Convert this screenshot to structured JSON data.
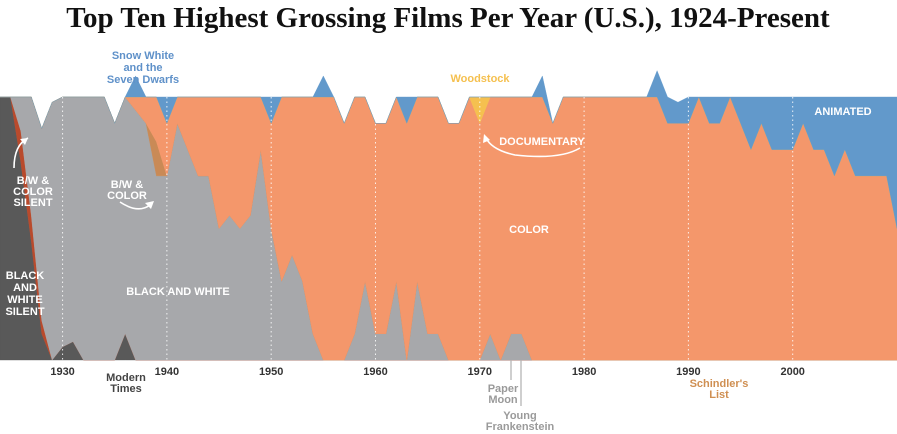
{
  "title": "Top Ten Highest Grossing Films Per Year (U.S.), 1924-Present",
  "chart_data": {
    "type": "area",
    "stacked": true,
    "normalized_to": 10,
    "x_ticks": [
      1930,
      1940,
      1950,
      1960,
      1970,
      1980,
      1990,
      2000
    ],
    "xlim": [
      1924,
      2010
    ],
    "ylim": [
      0,
      10
    ],
    "grid": "vertical dotted lines at each decade",
    "legend": "inline labels",
    "series": [
      {
        "key": "bw_silent",
        "name": "BLACK AND WHITE SILENT",
        "color": "#595959",
        "values": [
          [
            1924,
            10
          ],
          [
            1925,
            10
          ],
          [
            1926,
            7.5
          ],
          [
            1927,
            4.5
          ],
          [
            1928,
            1
          ],
          [
            1929,
            0
          ],
          [
            1930,
            0.5
          ],
          [
            1931,
            0.7
          ],
          [
            1932,
            0
          ],
          [
            1933,
            0
          ],
          [
            1934,
            0
          ],
          [
            1935,
            0
          ],
          [
            1936,
            1
          ],
          [
            1937,
            0
          ],
          [
            1938,
            0
          ],
          [
            1940,
            0
          ],
          [
            2010,
            0
          ]
        ]
      },
      {
        "key": "bw_color_silent",
        "name": "B/W & COLOR SILENT",
        "color": "#b94a2c",
        "values": [
          [
            1924,
            0
          ],
          [
            1925,
            0
          ],
          [
            1926,
            1.2
          ],
          [
            1927,
            1.0
          ],
          [
            1928,
            0.5
          ],
          [
            1929,
            0
          ],
          [
            2010,
            0
          ]
        ]
      },
      {
        "key": "bw",
        "name": "BLACK AND WHITE",
        "color": "#a7a8ab",
        "values": [
          [
            1924,
            0
          ],
          [
            1925,
            0
          ],
          [
            1926,
            1.3
          ],
          [
            1927,
            4.5
          ],
          [
            1928,
            7.3
          ],
          [
            1929,
            9.8
          ],
          [
            1930,
            9.5
          ],
          [
            1931,
            9.3
          ],
          [
            1932,
            10
          ],
          [
            1933,
            10
          ],
          [
            1934,
            10
          ],
          [
            1935,
            9
          ],
          [
            1936,
            9
          ],
          [
            1937,
            9.5
          ],
          [
            1938,
            9
          ],
          [
            1939,
            7
          ],
          [
            1940,
            7
          ],
          [
            1941,
            9
          ],
          [
            1942,
            8
          ],
          [
            1943,
            7
          ],
          [
            1944,
            7
          ],
          [
            1945,
            5
          ],
          [
            1946,
            5.5
          ],
          [
            1947,
            5
          ],
          [
            1948,
            5.5
          ],
          [
            1949,
            8
          ],
          [
            1950,
            5
          ],
          [
            1951,
            3
          ],
          [
            1952,
            4
          ],
          [
            1953,
            3
          ],
          [
            1954,
            1
          ],
          [
            1955,
            0
          ],
          [
            1956,
            0
          ],
          [
            1957,
            0
          ],
          [
            1958,
            1
          ],
          [
            1959,
            3
          ],
          [
            1960,
            1
          ],
          [
            1961,
            1
          ],
          [
            1962,
            3
          ],
          [
            1963,
            0
          ],
          [
            1964,
            3
          ],
          [
            1965,
            1
          ],
          [
            1966,
            1
          ],
          [
            1967,
            0
          ],
          [
            1968,
            0
          ],
          [
            1969,
            0
          ],
          [
            1970,
            0
          ],
          [
            1971,
            1
          ],
          [
            1972,
            0
          ],
          [
            1973,
            1
          ],
          [
            1974,
            1
          ],
          [
            1975,
            0
          ],
          [
            2010,
            0
          ]
        ]
      },
      {
        "key": "bw_color",
        "name": "B/W & COLOR",
        "color": "#c98a56",
        "values": [
          [
            1924,
            0
          ],
          [
            1938,
            0
          ],
          [
            1939,
            1.3
          ],
          [
            1940,
            0
          ],
          [
            2010,
            0
          ]
        ]
      },
      {
        "key": "color",
        "name": "COLOR",
        "color": "#f4976b",
        "values": [
          [
            1924,
            0
          ],
          [
            1936,
            0
          ],
          [
            1937,
            0.5
          ],
          [
            1938,
            1
          ],
          [
            1939,
            1.7
          ],
          [
            1940,
            2
          ],
          [
            1941,
            1
          ],
          [
            1942,
            2
          ],
          [
            1943,
            3
          ],
          [
            1944,
            3
          ],
          [
            1945,
            5
          ],
          [
            1946,
            4.5
          ],
          [
            1947,
            5
          ],
          [
            1948,
            4.5
          ],
          [
            1949,
            2
          ],
          [
            1950,
            4
          ],
          [
            1951,
            7
          ],
          [
            1952,
            6
          ],
          [
            1953,
            7
          ],
          [
            1954,
            9
          ],
          [
            1955,
            10
          ],
          [
            1956,
            10
          ],
          [
            1957,
            9
          ],
          [
            1958,
            9
          ],
          [
            1959,
            7
          ],
          [
            1960,
            8
          ],
          [
            1961,
            8
          ],
          [
            1962,
            7
          ],
          [
            1963,
            9
          ],
          [
            1964,
            7
          ],
          [
            1965,
            9
          ],
          [
            1966,
            9
          ],
          [
            1967,
            9
          ],
          [
            1968,
            9
          ],
          [
            1969,
            10
          ],
          [
            1970,
            9
          ],
          [
            1971,
            9
          ],
          [
            1972,
            10
          ],
          [
            1973,
            9
          ],
          [
            1974,
            9
          ],
          [
            1975,
            10
          ],
          [
            1976,
            10
          ],
          [
            1977,
            9
          ],
          [
            1978,
            10
          ],
          [
            1979,
            10
          ],
          [
            1980,
            10
          ],
          [
            1985,
            10
          ],
          [
            1986,
            10
          ],
          [
            1987,
            10
          ],
          [
            1988,
            9
          ],
          [
            1989,
            9
          ],
          [
            1990,
            9
          ],
          [
            1991,
            10
          ],
          [
            1992,
            9
          ],
          [
            1993,
            9
          ],
          [
            1994,
            10
          ],
          [
            1995,
            9
          ],
          [
            1996,
            8
          ],
          [
            1997,
            9
          ],
          [
            1998,
            8
          ],
          [
            1999,
            8
          ],
          [
            2000,
            8
          ],
          [
            2001,
            9
          ],
          [
            2002,
            8
          ],
          [
            2003,
            8
          ],
          [
            2004,
            7
          ],
          [
            2005,
            8
          ],
          [
            2006,
            7
          ],
          [
            2007,
            7
          ],
          [
            2008,
            7
          ],
          [
            2009,
            7
          ],
          [
            2010,
            5
          ]
        ]
      },
      {
        "key": "documentary",
        "name": "DOCUMENTARY",
        "color": "#f5c04f",
        "values": [
          [
            1924,
            0
          ],
          [
            1969,
            0
          ],
          [
            1970,
            1
          ],
          [
            1971,
            0
          ],
          [
            2010,
            0
          ]
        ]
      },
      {
        "key": "animated",
        "name": "ANIMATED",
        "color": "#6299cb",
        "values": [
          [
            1924,
            0
          ],
          [
            1936,
            0
          ],
          [
            1937,
            0.8
          ],
          [
            1938,
            0
          ],
          [
            1939,
            0
          ],
          [
            1940,
            1
          ],
          [
            1941,
            0
          ],
          [
            1949,
            0
          ],
          [
            1950,
            1
          ],
          [
            1951,
            0
          ],
          [
            1954,
            0
          ],
          [
            1955,
            0.8
          ],
          [
            1956,
            0
          ],
          [
            1962,
            0
          ],
          [
            1963,
            1
          ],
          [
            1964,
            0
          ],
          [
            1975,
            0
          ],
          [
            1976,
            0.8
          ],
          [
            1977,
            0
          ],
          [
            1986,
            0
          ],
          [
            1987,
            1
          ],
          [
            1988,
            1
          ],
          [
            1989,
            0.8
          ],
          [
            1990,
            1
          ],
          [
            1991,
            0
          ],
          [
            1992,
            1
          ],
          [
            1993,
            1
          ],
          [
            1994,
            0
          ],
          [
            1995,
            1
          ],
          [
            1996,
            2
          ],
          [
            1997,
            1
          ],
          [
            1998,
            2
          ],
          [
            1999,
            2
          ],
          [
            2000,
            2
          ],
          [
            2001,
            1
          ],
          [
            2002,
            2
          ],
          [
            2003,
            2
          ],
          [
            2004,
            3
          ],
          [
            2005,
            2
          ],
          [
            2006,
            3
          ],
          [
            2007,
            3
          ],
          [
            2008,
            3
          ],
          [
            2009,
            3
          ],
          [
            2010,
            5
          ]
        ]
      }
    ],
    "area_labels": {
      "bw_silent": "BLACK\nAND\nWHITE\nSILENT",
      "bw_color_silent": "B/W &\nCOLOR\nSILENT",
      "bw": "BLACK AND WHITE",
      "bw_color": "B/W &\nCOLOR",
      "color": "COLOR",
      "documentary": "DOCUMENTARY",
      "animated": "ANIMATED"
    },
    "annotations": [
      {
        "text": "Snow White\nand the\nSeven Dwarfs",
        "year": 1937,
        "color": "#5f91c9"
      },
      {
        "text": "Woodstock",
        "year": 1970,
        "color": "#f5c04f"
      },
      {
        "text": "Modern\nTimes",
        "year": 1936,
        "color": "#444444"
      },
      {
        "text": "Paper\nMoon",
        "year": 1973,
        "color": "#9a9a9a"
      },
      {
        "text": "Young\nFrankenstein",
        "year": 1974,
        "color": "#9a9a9a"
      },
      {
        "text": "Schindler's\nList",
        "year": 1993,
        "color": "#cf8f52"
      }
    ]
  }
}
